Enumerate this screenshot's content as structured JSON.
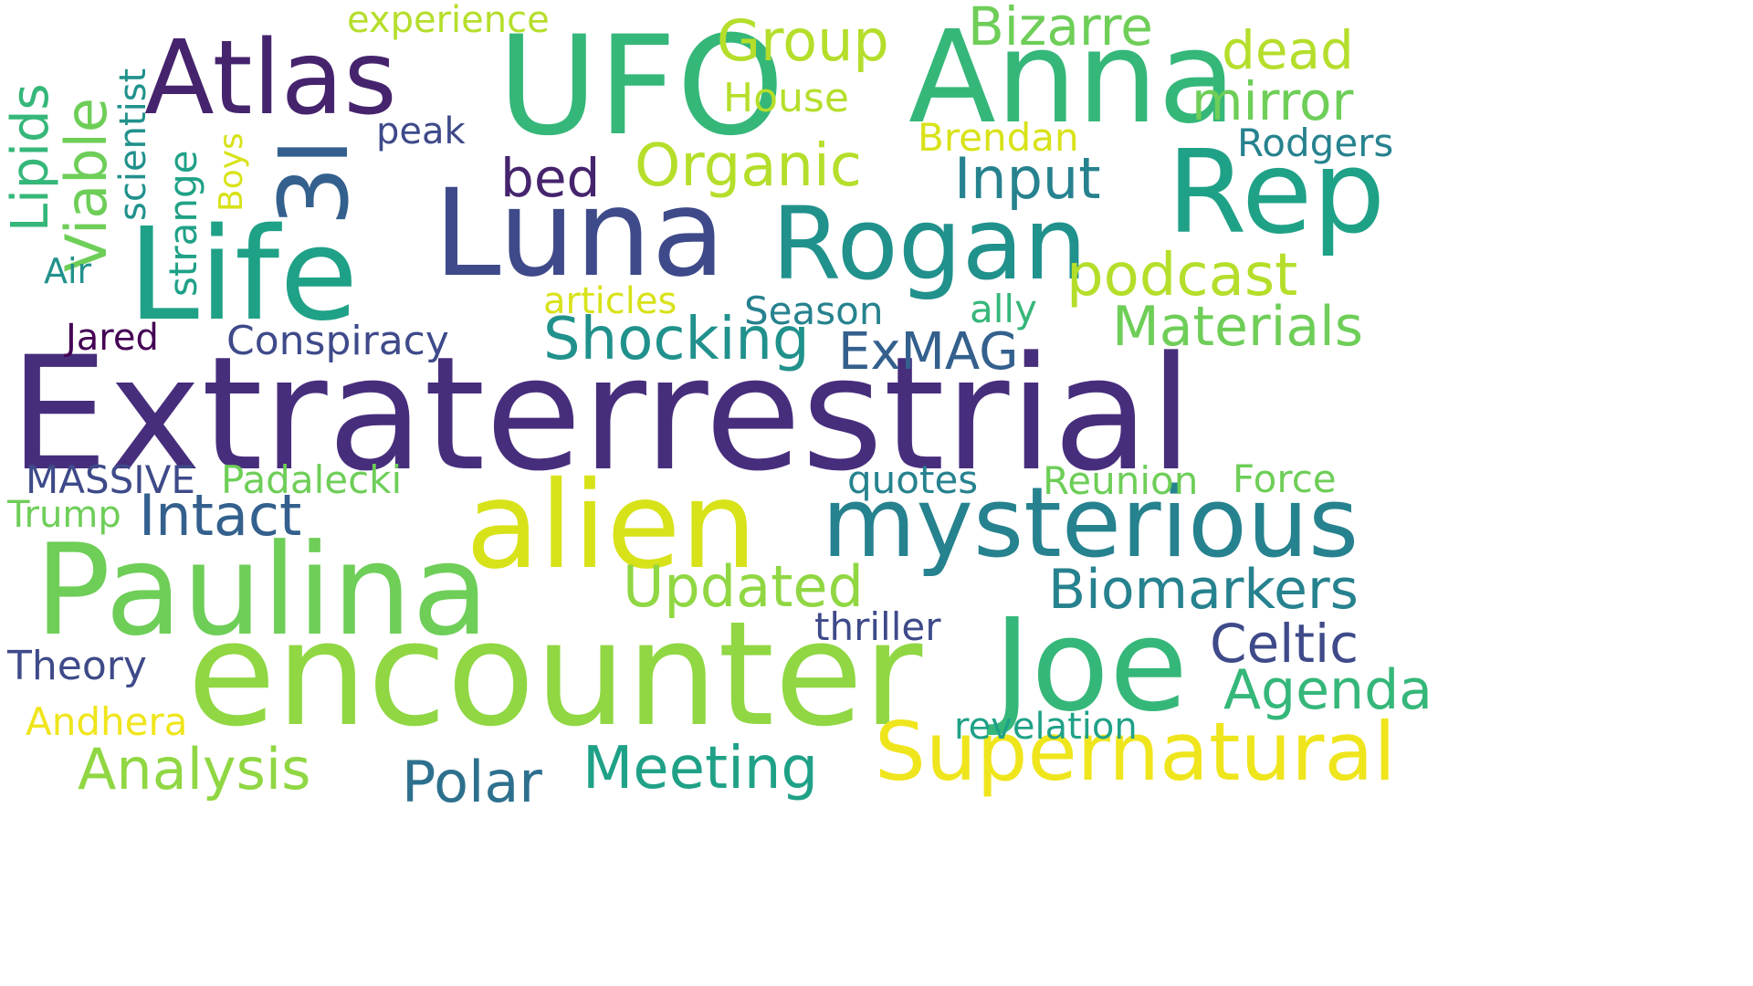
{
  "words": {
    "extraterrestrial": "Extraterrestrial",
    "encounter": "encounter",
    "paulina": "Paulina",
    "alien": "alien",
    "life": "Life",
    "luna": "Luna",
    "ufo": "UFO",
    "anna": "Anna",
    "joe": "Joe",
    "mysterious": "mysterious",
    "rogan": "Rogan",
    "rep": "Rep",
    "atlas": "Atlas",
    "supernatural": "Supernatural",
    "three_i": "3I",
    "podcast": "podcast",
    "shocking": "Shocking",
    "organic": "Organic",
    "materials": "Materials",
    "biomarkers": "Biomarkers",
    "group": "Group",
    "bizarre": "Bizarre",
    "mirror": "mirror",
    "dead": "dead",
    "input": "Input",
    "intact": "Intact",
    "updated": "Updated",
    "meeting": "Meeting",
    "analysis": "Analysis",
    "polar": "Polar",
    "agenda": "Agenda",
    "celtic": "Celtic",
    "viable": "Viable",
    "lipids": "Lipids",
    "scientist": "scientist",
    "strange": "strange",
    "boys": "Boys",
    "exmag": "ExMAG",
    "conspiracy": "Conspiracy",
    "bed": "bed",
    "house": "House",
    "experience": "experience",
    "peak": "peak",
    "brendan": "Brendan",
    "rodgers": "Rodgers",
    "season": "Season",
    "articles": "articles",
    "ally": "ally",
    "jared": "Jared",
    "air": "Air",
    "massive": "MASSIVE",
    "padalecki": "Padalecki",
    "trump": "Trump",
    "quotes": "quotes",
    "reunion": "Reunion",
    "force": "Force",
    "theory": "Theory",
    "thriller": "thriller",
    "andhera": "Andhera",
    "revelation": "revelation"
  }
}
